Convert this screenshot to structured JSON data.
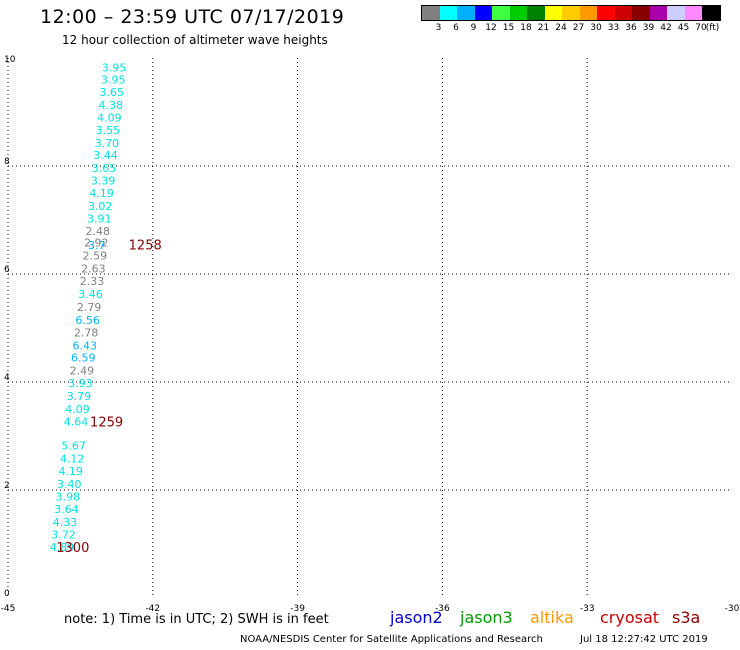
{
  "header": {
    "title": "12:00 – 23:59 UTC 07/17/2019",
    "subtitle": "12 hour collection of altimeter wave heights"
  },
  "legend": {
    "colors": [
      "#808080",
      "#00ffff",
      "#00b0ff",
      "#0000ff",
      "#40ff40",
      "#00cc00",
      "#008000",
      "#ffff00",
      "#ffcc00",
      "#ff9900",
      "#ff0000",
      "#cc0000",
      "#880000",
      "#aa00aa",
      "#ccccff",
      "#ff88ff",
      "#000000"
    ],
    "labels": [
      "3",
      "6",
      "9",
      "12",
      "15",
      "18",
      "21",
      "24",
      "27",
      "30",
      "33",
      "36",
      "39",
      "42",
      "45",
      "70",
      "(ft)"
    ]
  },
  "chart_data": {
    "type": "scatter",
    "xlim": [
      -45,
      -30
    ],
    "ylim": [
      0,
      10
    ],
    "x_ticks": [
      "-45",
      "-42",
      "-39",
      "-36",
      "-33",
      "-30"
    ],
    "y_ticks": [
      "0",
      "2",
      "4",
      "6",
      "8",
      "10"
    ],
    "x_tick_values": [
      -45,
      -42,
      -39,
      -36,
      -33,
      -30
    ],
    "y_tick_values": [
      0,
      2,
      4,
      6,
      8,
      10
    ],
    "grid": true,
    "points": [
      {
        "x": -42.8,
        "y": 9.82,
        "label": "3.95",
        "color": "#00e0e0"
      },
      {
        "x": -42.82,
        "y": 9.6,
        "label": "3.95",
        "color": "#00e0e0"
      },
      {
        "x": -42.85,
        "y": 9.37,
        "label": "3.65",
        "color": "#00e0e0"
      },
      {
        "x": -42.87,
        "y": 9.13,
        "label": "4.38",
        "color": "#00e0e0"
      },
      {
        "x": -42.9,
        "y": 8.9,
        "label": "4.09",
        "color": "#00e0e0"
      },
      {
        "x": -42.93,
        "y": 8.67,
        "label": "3.55",
        "color": "#00e0e0"
      },
      {
        "x": -42.95,
        "y": 8.43,
        "label": "3.70",
        "color": "#00e0e0"
      },
      {
        "x": -42.98,
        "y": 8.2,
        "label": "3.44",
        "color": "#00e0e0"
      },
      {
        "x": -43.01,
        "y": 7.96,
        "label": "3.65",
        "color": "#00e0e0"
      },
      {
        "x": -43.03,
        "y": 7.73,
        "label": "3.39",
        "color": "#00e0e0"
      },
      {
        "x": -43.06,
        "y": 7.5,
        "label": "4.19",
        "color": "#00e0e0"
      },
      {
        "x": -43.09,
        "y": 7.26,
        "label": "3.02",
        "color": "#00e0e0"
      },
      {
        "x": -43.11,
        "y": 7.03,
        "label": "3.91",
        "color": "#00e0e0"
      },
      {
        "x": -43.14,
        "y": 6.8,
        "label": "2.48",
        "color": "#808080"
      },
      {
        "x": -43.17,
        "y": 6.58,
        "label": "2.92",
        "color": "#808080"
      },
      {
        "x": -43.16,
        "y": 6.54,
        "label": "3.7",
        "color": "#00b0ff"
      },
      {
        "x": -43.2,
        "y": 6.34,
        "label": "2.59",
        "color": "#808080"
      },
      {
        "x": -43.23,
        "y": 6.1,
        "label": "2.63",
        "color": "#808080"
      },
      {
        "x": -43.26,
        "y": 5.87,
        "label": "2.33",
        "color": "#808080"
      },
      {
        "x": -43.29,
        "y": 5.63,
        "label": "3.46",
        "color": "#00e0e0"
      },
      {
        "x": -43.32,
        "y": 5.39,
        "label": "2.79",
        "color": "#808080"
      },
      {
        "x": -43.35,
        "y": 5.15,
        "label": "6.56",
        "color": "#00b0ff"
      },
      {
        "x": -43.38,
        "y": 4.92,
        "label": "2.78",
        "color": "#808080"
      },
      {
        "x": -43.41,
        "y": 4.68,
        "label": "6.43",
        "color": "#00b0ff"
      },
      {
        "x": -43.44,
        "y": 4.45,
        "label": "6.59",
        "color": "#00b0ff"
      },
      {
        "x": -43.47,
        "y": 4.21,
        "label": "2.49",
        "color": "#808080"
      },
      {
        "x": -43.5,
        "y": 3.98,
        "label": "3.93",
        "color": "#00e0e0"
      },
      {
        "x": -43.53,
        "y": 3.74,
        "label": "3.79",
        "color": "#00e0e0"
      },
      {
        "x": -43.56,
        "y": 3.5,
        "label": "4.09",
        "color": "#00e0e0"
      },
      {
        "x": -43.59,
        "y": 3.27,
        "label": "4.64",
        "color": "#00e0e0"
      },
      {
        "x": -43.64,
        "y": 2.82,
        "label": "5.67",
        "color": "#00e0e0"
      },
      {
        "x": -43.67,
        "y": 2.58,
        "label": "4.12",
        "color": "#00e0e0"
      },
      {
        "x": -43.7,
        "y": 2.35,
        "label": "4.19",
        "color": "#00e0e0"
      },
      {
        "x": -43.73,
        "y": 2.11,
        "label": "3.40",
        "color": "#00e0e0"
      },
      {
        "x": -43.76,
        "y": 1.88,
        "label": "3.98",
        "color": "#00e0e0"
      },
      {
        "x": -43.79,
        "y": 1.65,
        "label": "3.64",
        "color": "#00e0e0"
      },
      {
        "x": -43.82,
        "y": 1.41,
        "label": "4.33",
        "color": "#00e0e0"
      },
      {
        "x": -43.85,
        "y": 1.18,
        "label": "3.72",
        "color": "#00e0e0"
      },
      {
        "x": -43.88,
        "y": 0.94,
        "label": "4.89",
        "color": "#00e0e0"
      }
    ],
    "time_labels": [
      {
        "x": -42.5,
        "y": 6.55,
        "label": "1258",
        "color": "#880000"
      },
      {
        "x": -43.3,
        "y": 3.27,
        "label": "1259",
        "color": "#880000"
      },
      {
        "x": -44.0,
        "y": 0.94,
        "label": "1300",
        "color": "#880000"
      }
    ]
  },
  "note": "note:  1) Time is in UTC;  2) SWH is in feet",
  "satellites": [
    {
      "name": "jason2",
      "color": "#0000cc"
    },
    {
      "name": "jason3",
      "color": "#009900"
    },
    {
      "name": "altika",
      "color": "#ff9900"
    },
    {
      "name": "cryosat",
      "color": "#cc0000"
    },
    {
      "name": "s3a",
      "color": "#880000"
    }
  ],
  "footer": {
    "credit": "NOAA/NESDIS Center for Satellite Applications and Research",
    "timestamp": "Jul 18 12:27:42 UTC 2019"
  }
}
